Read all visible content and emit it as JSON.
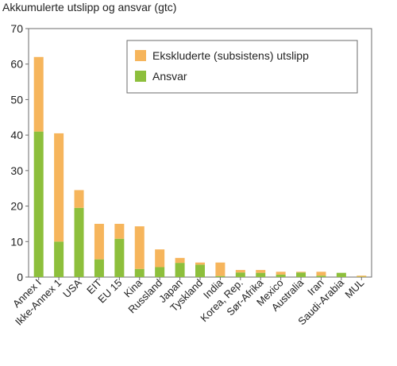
{
  "chart_data": {
    "type": "bar",
    "stacked": true,
    "title": "Akkumulerte utslipp og ansvar (gtc)",
    "xlabel": "",
    "ylabel": "",
    "ylim": [
      0,
      70
    ],
    "yticks": [
      0,
      10,
      20,
      30,
      40,
      50,
      60,
      70
    ],
    "grid": false,
    "legend_position": "top-right",
    "categories": [
      "Annex I",
      "Ikke-Annex 1",
      "USA",
      "EIT",
      "EU 15",
      "Kina",
      "Russland",
      "Japan",
      "Tyskland",
      "India",
      "Korea, Rep.",
      "Sør-Afrika",
      "Mexico",
      "Australia",
      "Iran",
      "Saudi-Arabia",
      "MUL"
    ],
    "series": [
      {
        "name": "Ansvar",
        "color": "#8dbf3c",
        "values": [
          41,
          10,
          19.5,
          5,
          10.8,
          2.3,
          2.8,
          4,
          3.5,
          0.3,
          1.3,
          1.2,
          0.7,
          1.3,
          0.4,
          1.2,
          0.1
        ]
      },
      {
        "name": "Ekskluderte (subsistens) utslipp",
        "color": "#f6b55c",
        "values": [
          21,
          30.5,
          5,
          10,
          4.2,
          12,
          5,
          1.4,
          0.6,
          3.8,
          0.7,
          0.8,
          0.8,
          0.2,
          1.1,
          0,
          0.3
        ]
      }
    ],
    "legend": [
      "Ekskluderte (subsistens) utslipp",
      "Ansvar"
    ]
  }
}
